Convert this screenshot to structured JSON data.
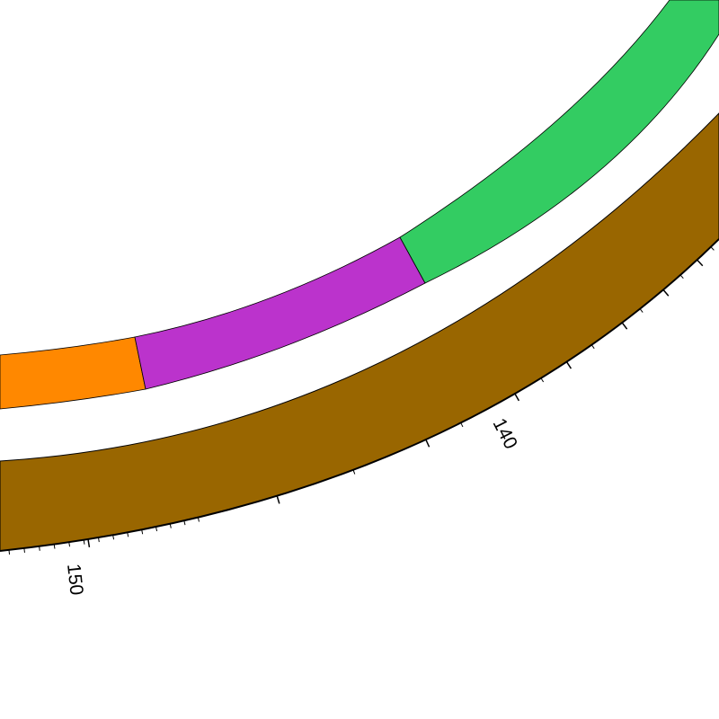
{
  "diagram": {
    "type": "circular-map",
    "background": "#ffffff",
    "outline_color": "#000000",
    "feature_ring": {
      "segments": [
        {
          "name": "orange-segment",
          "color": "#ff8800"
        },
        {
          "name": "magenta-segment",
          "color": "#bb33cc"
        },
        {
          "name": "green-segment",
          "color": "#33cc62"
        }
      ]
    },
    "backbone_ring": {
      "color": "#996600"
    },
    "scale": {
      "tick_labels": [
        {
          "value": "140"
        },
        {
          "value": "150"
        }
      ]
    }
  }
}
